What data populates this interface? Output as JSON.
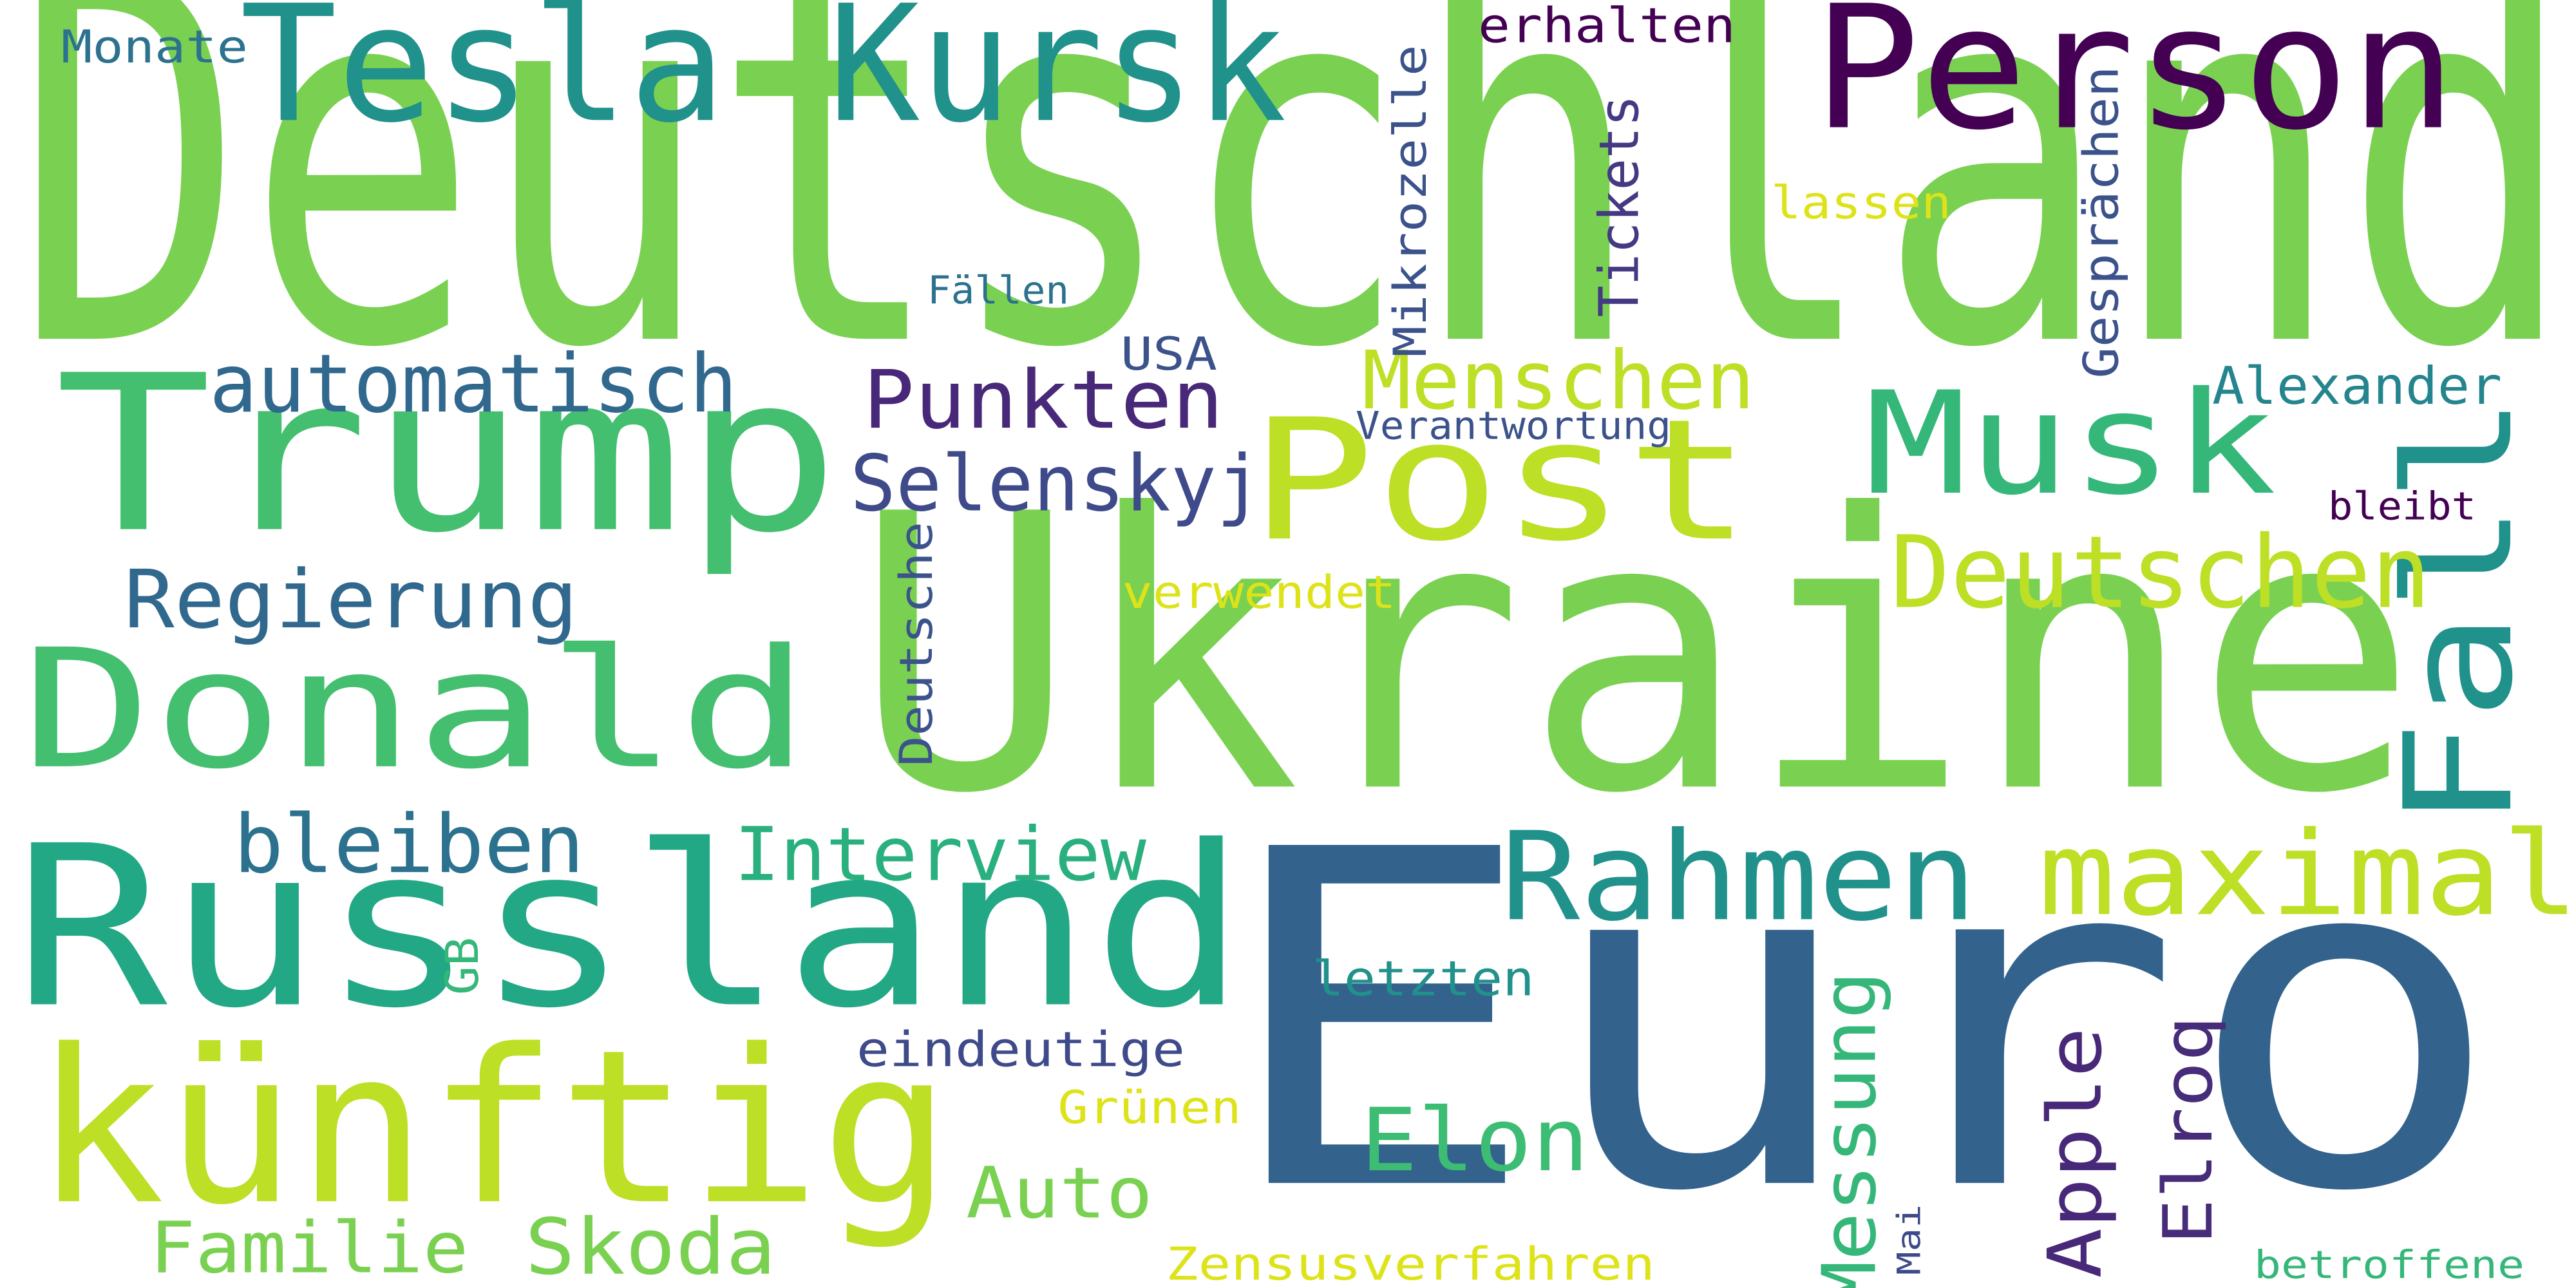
{
  "word_cloud": {
    "words": [
      {
        "id": "deutschland",
        "text": "Deutschland",
        "color": "#7ad151"
      },
      {
        "id": "ukraine",
        "text": "Ukraine",
        "color": "#7ad151"
      },
      {
        "id": "euro",
        "text": "Euro",
        "color": "#33638d"
      },
      {
        "id": "russland",
        "text": "Russland",
        "color": "#22a884"
      },
      {
        "id": "trump",
        "text": "Trump",
        "color": "#44bf70"
      },
      {
        "id": "kuenftig",
        "text": "künftig",
        "color": "#bddf26"
      },
      {
        "id": "post",
        "text": "Post",
        "color": "#bddf26"
      },
      {
        "id": "donald",
        "text": "Donald",
        "color": "#44bf70"
      },
      {
        "id": "tesla",
        "text": "Tesla",
        "color": "#21918c"
      },
      {
        "id": "kursk",
        "text": "Kursk",
        "color": "#21918c"
      },
      {
        "id": "person",
        "text": "Person",
        "color": "#440154"
      },
      {
        "id": "musk",
        "text": "Musk",
        "color": "#35b779"
      },
      {
        "id": "fall",
        "text": "Fall",
        "color": "#21918c"
      },
      {
        "id": "rahmen",
        "text": "Rahmen",
        "color": "#21918c"
      },
      {
        "id": "maximal",
        "text": "maximal",
        "color": "#bddf26"
      },
      {
        "id": "deutschen",
        "text": "Deutschen",
        "color": "#bddf26"
      },
      {
        "id": "menschen",
        "text": "Menschen",
        "color": "#bddf26"
      },
      {
        "id": "automatisch",
        "text": "automatisch",
        "color": "#31688e"
      },
      {
        "id": "punkten",
        "text": "Punkten",
        "color": "#482878"
      },
      {
        "id": "selenskyj",
        "text": "Selenskyj",
        "color": "#3e4a89"
      },
      {
        "id": "regierung",
        "text": "Regierung",
        "color": "#31688e"
      },
      {
        "id": "bleiben",
        "text": "bleiben",
        "color": "#2c728e"
      },
      {
        "id": "interview",
        "text": "Interview",
        "color": "#2ab07f"
      },
      {
        "id": "elon",
        "text": "Elon",
        "color": "#3dbc74"
      },
      {
        "id": "auto",
        "text": "Auto",
        "color": "#7ad151"
      },
      {
        "id": "skoda",
        "text": "Skoda",
        "color": "#7ad151"
      },
      {
        "id": "familie",
        "text": "Familie",
        "color": "#7ad151"
      },
      {
        "id": "messung",
        "text": "Messung",
        "color": "#35b779"
      },
      {
        "id": "apple",
        "text": "Apple",
        "color": "#482878"
      },
      {
        "id": "elroq",
        "text": "Elroq",
        "color": "#472c7a"
      },
      {
        "id": "deutsche",
        "text": "Deutsche",
        "color": "#3b528b"
      },
      {
        "id": "tickets",
        "text": "Tickets",
        "color": "#443983"
      },
      {
        "id": "mikrozelle",
        "text": "Mikrozelle",
        "color": "#3b528b"
      },
      {
        "id": "gespraechen",
        "text": "Gesprächen",
        "color": "#3b528b"
      },
      {
        "id": "alexander",
        "text": "Alexander",
        "color": "#25858e"
      },
      {
        "id": "verantwortung",
        "text": "Verantwortung",
        "color": "#3b528b"
      },
      {
        "id": "bleibt",
        "text": "bleibt",
        "color": "#440154"
      },
      {
        "id": "erhalten",
        "text": "erhalten",
        "color": "#440154"
      },
      {
        "id": "lassen",
        "text": "lassen",
        "color": "#dde318"
      },
      {
        "id": "faellen",
        "text": "Fällen",
        "color": "#2c728e"
      },
      {
        "id": "usa",
        "text": "USA",
        "color": "#3b528b"
      },
      {
        "id": "monate",
        "text": "Monate",
        "color": "#2c728e"
      },
      {
        "id": "verwendet",
        "text": "verwendet",
        "color": "#dde318"
      },
      {
        "id": "gb",
        "text": "GB",
        "color": "#35b779"
      },
      {
        "id": "letzten",
        "text": "letzten",
        "color": "#21918c"
      },
      {
        "id": "eindeutige",
        "text": "eindeutige",
        "color": "#3e4a89"
      },
      {
        "id": "gruenen",
        "text": "Grünen",
        "color": "#dde318"
      },
      {
        "id": "zensusverfahren",
        "text": "Zensusverfahren",
        "color": "#dde318"
      },
      {
        "id": "mai",
        "text": "Mai",
        "color": "#3e4a89"
      },
      {
        "id": "betroffene",
        "text": "betroffene",
        "color": "#35b779"
      }
    ]
  }
}
